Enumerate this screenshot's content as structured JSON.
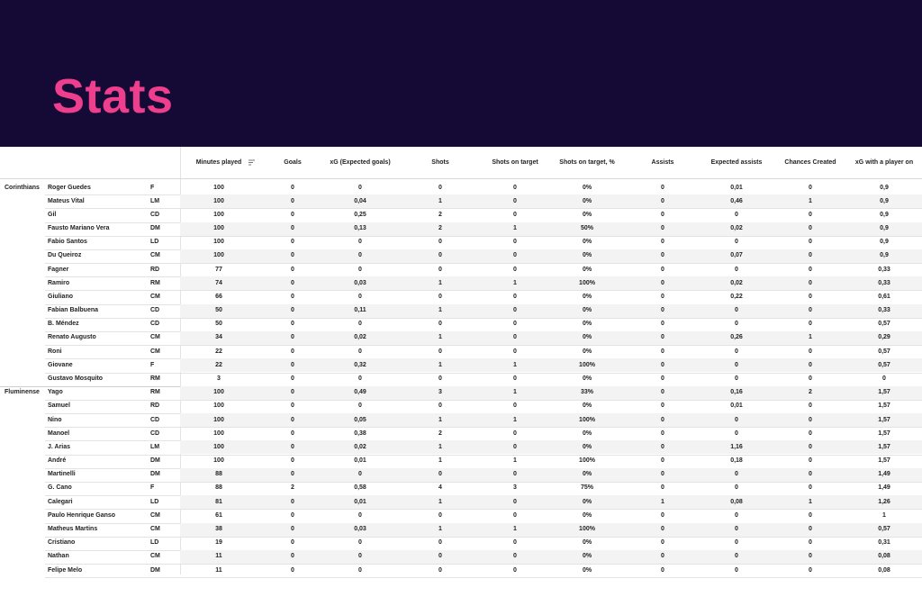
{
  "header": {
    "title": "Stats"
  },
  "table": {
    "columns": [
      "Minutes played",
      "Goals",
      "xG (Expected goals)",
      "Shots",
      "Shots on target",
      "Shots on target, %",
      "Assists",
      "Expected assists",
      "Chances Created",
      "xG with a player on"
    ],
    "groups": [
      {
        "team": "Corinthians",
        "rows": [
          [
            "Roger Guedes",
            "F",
            "100",
            "0",
            "0",
            "0",
            "0",
            "0%",
            "0",
            "0,01",
            "0",
            "0,9"
          ],
          [
            "Mateus Vital",
            "LM",
            "100",
            "0",
            "0,04",
            "1",
            "0",
            "0%",
            "0",
            "0,46",
            "1",
            "0,9"
          ],
          [
            "Gil",
            "CD",
            "100",
            "0",
            "0,25",
            "2",
            "0",
            "0%",
            "0",
            "0",
            "0",
            "0,9"
          ],
          [
            "Fausto Mariano Vera",
            "DM",
            "100",
            "0",
            "0,13",
            "2",
            "1",
            "50%",
            "0",
            "0,02",
            "0",
            "0,9"
          ],
          [
            "Fabio Santos",
            "LD",
            "100",
            "0",
            "0",
            "0",
            "0",
            "0%",
            "0",
            "0",
            "0",
            "0,9"
          ],
          [
            "Du Queiroz",
            "CM",
            "100",
            "0",
            "0",
            "0",
            "0",
            "0%",
            "0",
            "0,07",
            "0",
            "0,9"
          ],
          [
            "Fagner",
            "RD",
            "77",
            "0",
            "0",
            "0",
            "0",
            "0%",
            "0",
            "0",
            "0",
            "0,33"
          ],
          [
            "Ramiro",
            "RM",
            "74",
            "0",
            "0,03",
            "1",
            "1",
            "100%",
            "0",
            "0,02",
            "0",
            "0,33"
          ],
          [
            "Giuliano",
            "CM",
            "66",
            "0",
            "0",
            "0",
            "0",
            "0%",
            "0",
            "0,22",
            "0",
            "0,61"
          ],
          [
            "Fabian Balbuena",
            "CD",
            "50",
            "0",
            "0,11",
            "1",
            "0",
            "0%",
            "0",
            "0",
            "0",
            "0,33"
          ],
          [
            "B. Méndez",
            "CD",
            "50",
            "0",
            "0",
            "0",
            "0",
            "0%",
            "0",
            "0",
            "0",
            "0,57"
          ],
          [
            "Renato Augusto",
            "CM",
            "34",
            "0",
            "0,02",
            "1",
            "0",
            "0%",
            "0",
            "0,26",
            "1",
            "0,29"
          ],
          [
            "Roni",
            "CM",
            "22",
            "0",
            "0",
            "0",
            "0",
            "0%",
            "0",
            "0",
            "0",
            "0,57"
          ],
          [
            "Giovane",
            "F",
            "22",
            "0",
            "0,32",
            "1",
            "1",
            "100%",
            "0",
            "0",
            "0",
            "0,57"
          ],
          [
            "Gustavo Mosquito",
            "RM",
            "3",
            "0",
            "0",
            "0",
            "0",
            "0%",
            "0",
            "0",
            "0",
            "0"
          ]
        ]
      },
      {
        "team": "Fluminense",
        "rows": [
          [
            "Yago",
            "RM",
            "100",
            "0",
            "0,49",
            "3",
            "1",
            "33%",
            "0",
            "0,16",
            "2",
            "1,57"
          ],
          [
            "Samuel",
            "RD",
            "100",
            "0",
            "0",
            "0",
            "0",
            "0%",
            "0",
            "0,01",
            "0",
            "1,57"
          ],
          [
            "Nino",
            "CD",
            "100",
            "0",
            "0,05",
            "1",
            "1",
            "100%",
            "0",
            "0",
            "0",
            "1,57"
          ],
          [
            "Manoel",
            "CD",
            "100",
            "0",
            "0,38",
            "2",
            "0",
            "0%",
            "0",
            "0",
            "0",
            "1,57"
          ],
          [
            "J. Arias",
            "LM",
            "100",
            "0",
            "0,02",
            "1",
            "0",
            "0%",
            "0",
            "1,16",
            "0",
            "1,57"
          ],
          [
            "André",
            "DM",
            "100",
            "0",
            "0,01",
            "1",
            "1",
            "100%",
            "0",
            "0,18",
            "0",
            "1,57"
          ],
          [
            "Martinelli",
            "DM",
            "88",
            "0",
            "0",
            "0",
            "0",
            "0%",
            "0",
            "0",
            "0",
            "1,49"
          ],
          [
            "G. Cano",
            "F",
            "88",
            "2",
            "0,58",
            "4",
            "3",
            "75%",
            "0",
            "0",
            "0",
            "1,49"
          ],
          [
            "Calegari",
            "LD",
            "81",
            "0",
            "0,01",
            "1",
            "0",
            "0%",
            "1",
            "0,08",
            "1",
            "1,26"
          ],
          [
            "Paulo Henrique Ganso",
            "CM",
            "61",
            "0",
            "0",
            "0",
            "0",
            "0%",
            "0",
            "0",
            "0",
            "1"
          ],
          [
            "Matheus Martins",
            "CM",
            "38",
            "0",
            "0,03",
            "1",
            "1",
            "100%",
            "0",
            "0",
            "0",
            "0,57"
          ],
          [
            "Cristiano",
            "LD",
            "19",
            "0",
            "0",
            "0",
            "0",
            "0%",
            "0",
            "0",
            "0",
            "0,31"
          ],
          [
            "Nathan",
            "CM",
            "11",
            "0",
            "0",
            "0",
            "0",
            "0%",
            "0",
            "0",
            "0",
            "0,08"
          ],
          [
            "Felipe Melo",
            "DM",
            "11",
            "0",
            "0",
            "0",
            "0",
            "0%",
            "0",
            "0",
            "0",
            "0,08"
          ]
        ]
      }
    ]
  }
}
